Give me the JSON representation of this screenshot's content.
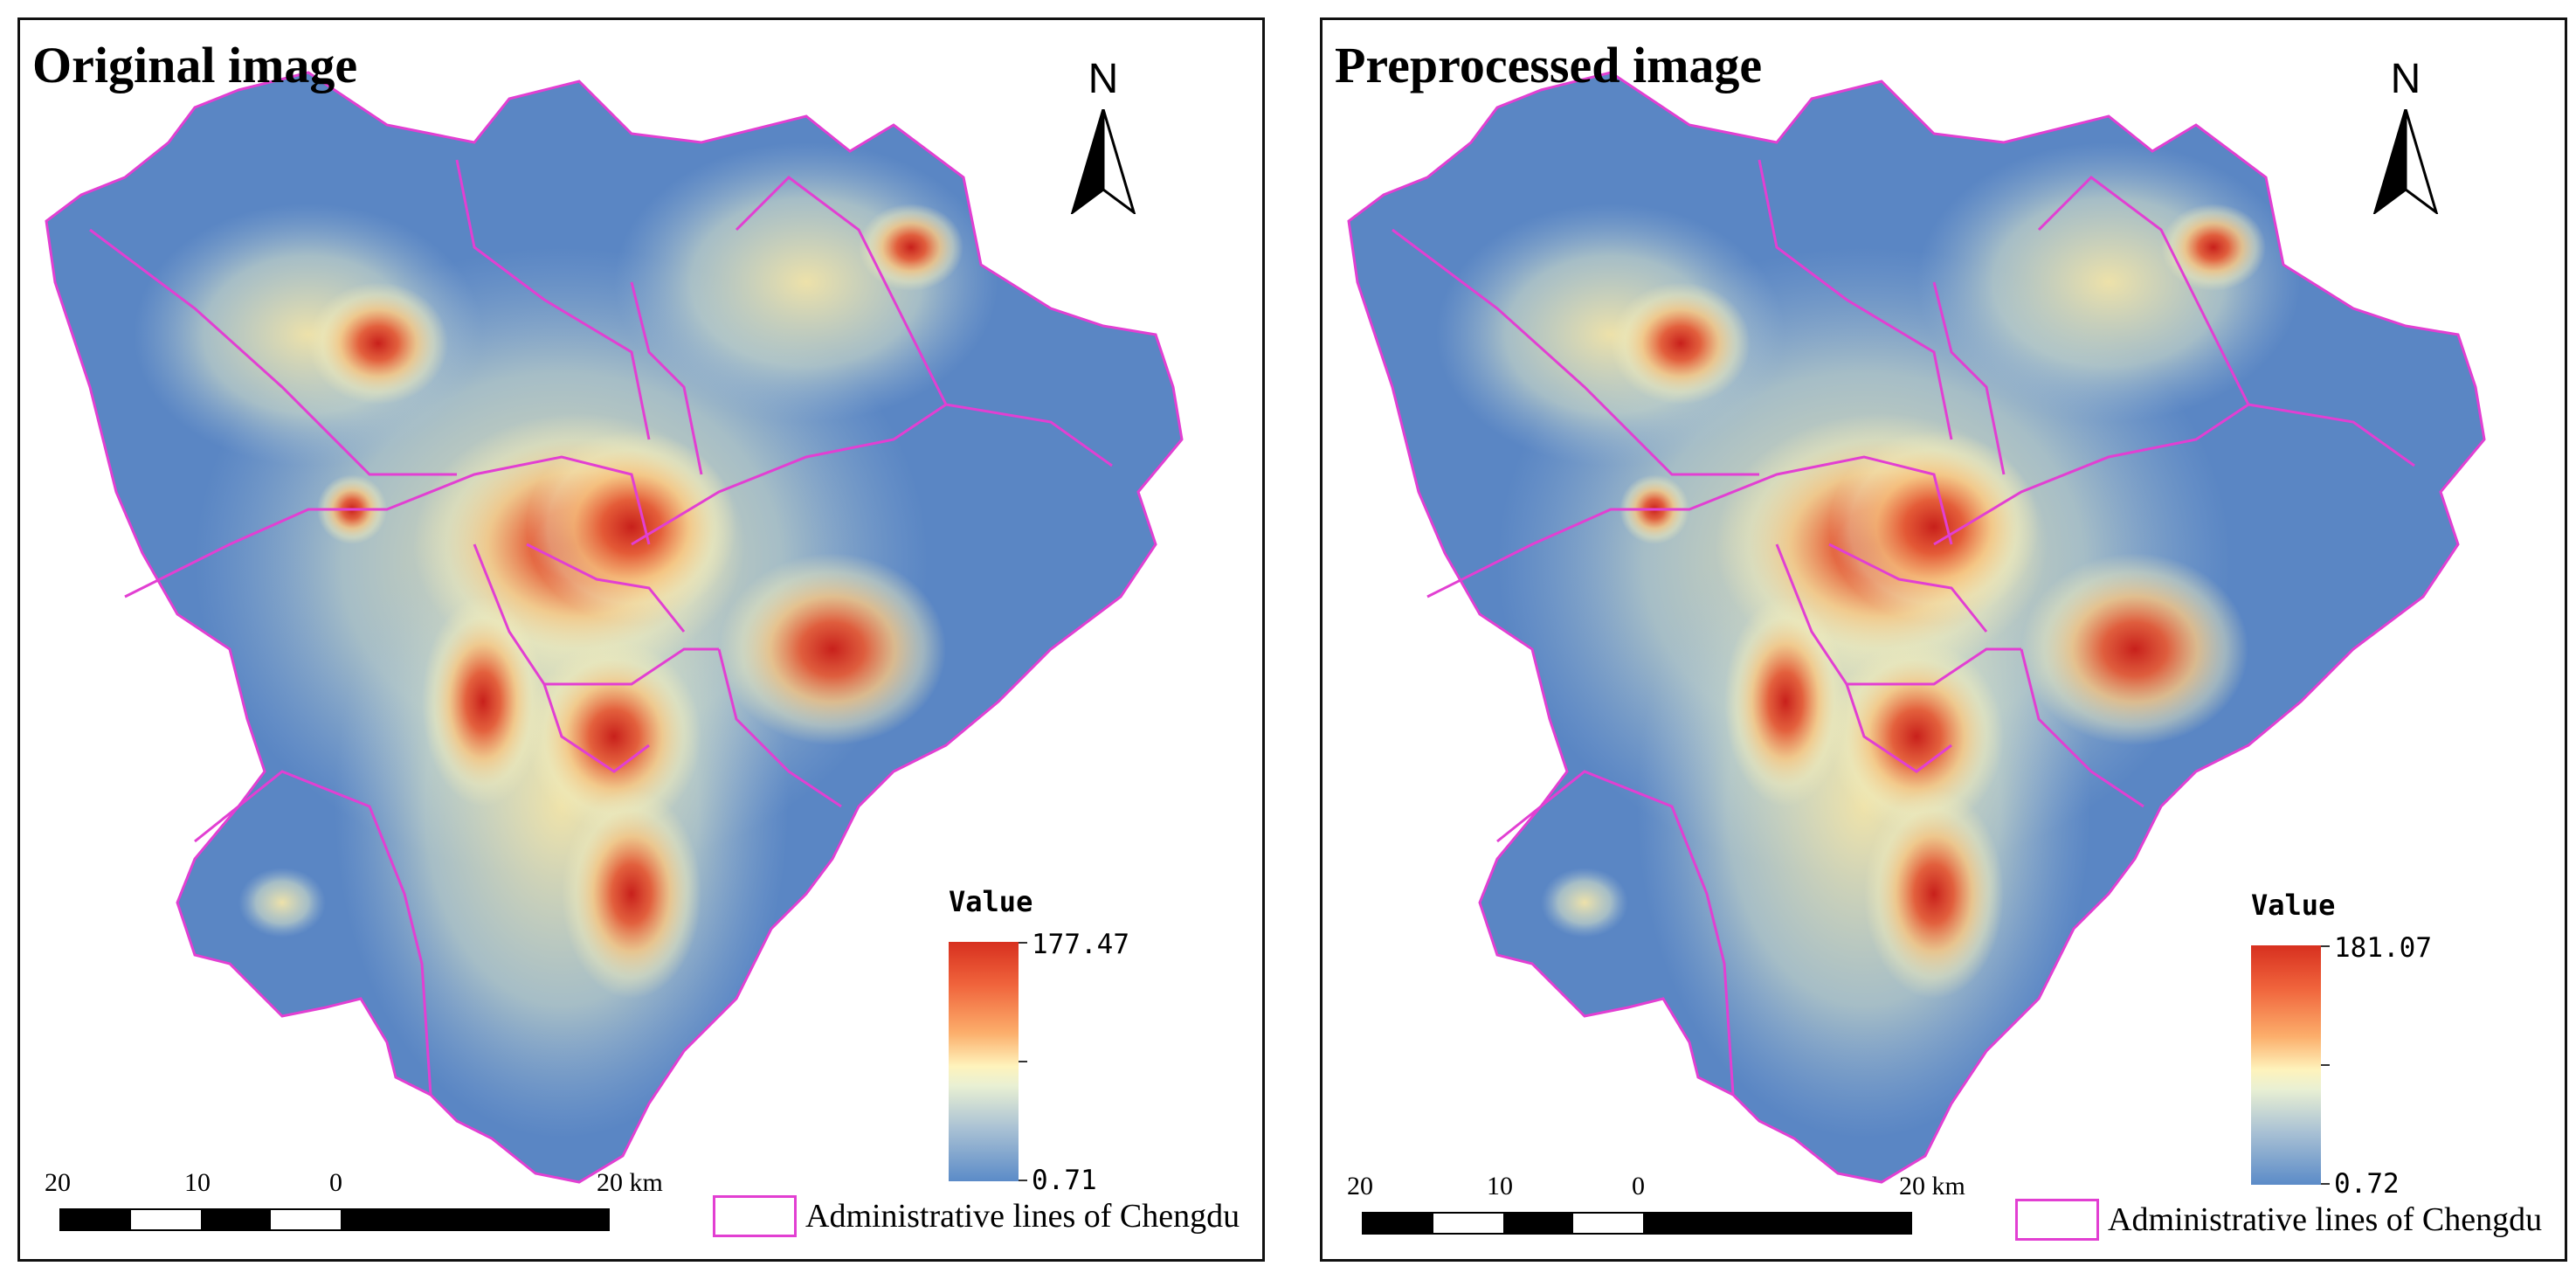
{
  "colors": {
    "map_low": "#5a86c4",
    "map_mid": "#f6efb3",
    "map_high": "#d42a1c",
    "admin_line": "#e23fd2"
  },
  "panels": [
    {
      "title": "Original image",
      "north_label": "N",
      "legend": {
        "title": "Value",
        "max": "177.47",
        "min": "0.71"
      },
      "scale": {
        "labels": [
          "20",
          "10",
          "0",
          "20 km"
        ]
      },
      "admin_label": "Administrative lines of Chengdu"
    },
    {
      "title": "Preprocessed image",
      "north_label": "N",
      "legend": {
        "title": "Value",
        "max": "181.07",
        "min": "0.72"
      },
      "scale": {
        "labels": [
          "20",
          "10",
          "0",
          "20 km"
        ]
      },
      "admin_label": "Administrative lines of Chengdu"
    }
  ]
}
